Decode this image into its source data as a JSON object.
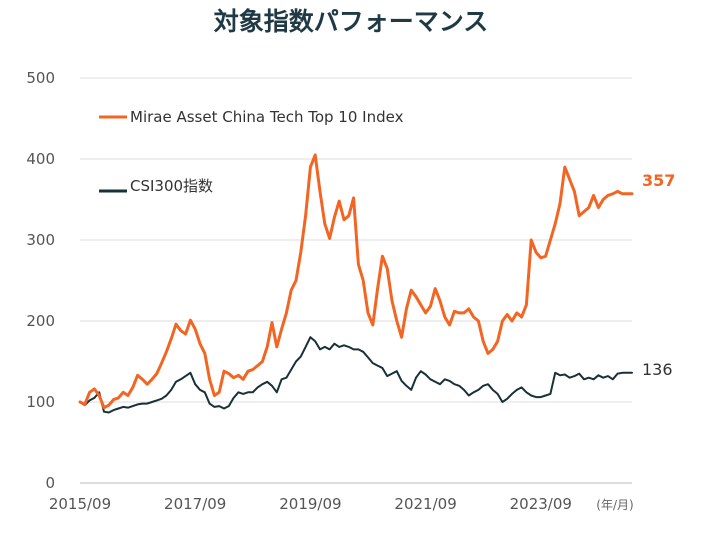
{
  "chart_data": {
    "type": "line",
    "title": "対象指数パフォーマンス",
    "xlabel": "",
    "ylabel": "",
    "x_unit_label": "(年/月)",
    "ylim": [
      0,
      500
    ],
    "yticks": [
      0,
      100,
      200,
      300,
      400,
      500
    ],
    "x_tick_labels": [
      "2015/09",
      "2017/09",
      "2019/09",
      "2021/09",
      "2023/09"
    ],
    "x_range_months": [
      0,
      115
    ],
    "x_tick_months": [
      0,
      24,
      48,
      72,
      96
    ],
    "grid": true,
    "legend_position": "top-left",
    "series": [
      {
        "name": "Mirae Asset China Tech Top 10 Index",
        "color": "#f26522",
        "end_label": "357",
        "months": [
          0,
          1,
          2,
          3,
          4,
          5,
          6,
          7,
          8,
          9,
          10,
          11,
          12,
          13,
          14,
          15,
          16,
          17,
          18,
          19,
          20,
          21,
          22,
          23,
          24,
          25,
          26,
          27,
          28,
          29,
          30,
          31,
          32,
          33,
          34,
          35,
          36,
          37,
          38,
          39,
          40,
          41,
          42,
          43,
          44,
          45,
          46,
          47,
          48,
          49,
          50,
          51,
          52,
          53,
          54,
          55,
          56,
          57,
          58,
          59,
          60,
          61,
          62,
          63,
          64,
          65,
          66,
          67,
          68,
          69,
          70,
          71,
          72,
          73,
          74,
          75,
          76,
          77,
          78,
          79,
          80,
          81,
          82,
          83,
          84,
          85,
          86,
          87,
          88,
          89,
          90,
          91,
          92,
          93,
          94,
          95,
          96,
          97,
          98,
          99,
          100,
          101,
          102,
          103,
          104,
          105,
          106,
          107,
          108,
          109,
          110,
          111,
          112,
          113,
          114,
          115
        ],
        "values": [
          100,
          97,
          112,
          116,
          108,
          93,
          96,
          103,
          105,
          112,
          108,
          118,
          133,
          128,
          122,
          128,
          135,
          148,
          162,
          178,
          196,
          188,
          184,
          201,
          190,
          172,
          160,
          128,
          108,
          112,
          138,
          135,
          130,
          133,
          128,
          138,
          140,
          145,
          150,
          168,
          198,
          168,
          190,
          210,
          238,
          250,
          285,
          330,
          390,
          405,
          360,
          320,
          302,
          328,
          348,
          325,
          330,
          352,
          270,
          250,
          210,
          195,
          240,
          280,
          265,
          225,
          200,
          180,
          215,
          238,
          230,
          220,
          210,
          218,
          240,
          225,
          205,
          195,
          212,
          210,
          210,
          215,
          205,
          200,
          175,
          160,
          165,
          175,
          200,
          208,
          200,
          210,
          205,
          220,
          300,
          285,
          278,
          280,
          300,
          320,
          345,
          390,
          375,
          360,
          330,
          335,
          340,
          355,
          340,
          350,
          355,
          357,
          360,
          357,
          357,
          357
        ]
      },
      {
        "name": "CSI300指数",
        "color": "#17303a",
        "end_label": "136",
        "months": [
          0,
          1,
          2,
          3,
          4,
          5,
          6,
          7,
          8,
          9,
          10,
          11,
          12,
          13,
          14,
          15,
          16,
          17,
          18,
          19,
          20,
          21,
          22,
          23,
          24,
          25,
          26,
          27,
          28,
          29,
          30,
          31,
          32,
          33,
          34,
          35,
          36,
          37,
          38,
          39,
          40,
          41,
          42,
          43,
          44,
          45,
          46,
          47,
          48,
          49,
          50,
          51,
          52,
          53,
          54,
          55,
          56,
          57,
          58,
          59,
          60,
          61,
          62,
          63,
          64,
          65,
          66,
          67,
          68,
          69,
          70,
          71,
          72,
          73,
          74,
          75,
          76,
          77,
          78,
          79,
          80,
          81,
          82,
          83,
          84,
          85,
          86,
          87,
          88,
          89,
          90,
          91,
          92,
          93,
          94,
          95,
          96,
          97,
          98,
          99,
          100,
          101,
          102,
          103,
          104,
          105,
          106,
          107,
          108,
          109,
          110,
          111,
          112,
          113,
          114,
          115
        ],
        "values": [
          100,
          96,
          102,
          105,
          112,
          88,
          87,
          90,
          92,
          94,
          93,
          95,
          97,
          98,
          98,
          100,
          102,
          104,
          108,
          115,
          125,
          128,
          132,
          136,
          122,
          115,
          112,
          98,
          94,
          95,
          92,
          95,
          105,
          112,
          110,
          112,
          112,
          118,
          122,
          125,
          120,
          112,
          128,
          130,
          140,
          150,
          156,
          168,
          180,
          175,
          165,
          168,
          165,
          172,
          168,
          170,
          168,
          165,
          165,
          162,
          155,
          148,
          145,
          142,
          132,
          135,
          138,
          126,
          120,
          115,
          130,
          138,
          134,
          128,
          125,
          122,
          128,
          126,
          122,
          120,
          115,
          108,
          112,
          115,
          120,
          122,
          115,
          110,
          100,
          104,
          110,
          115,
          118,
          112,
          108,
          106,
          106,
          108,
          110,
          136,
          133,
          134,
          130,
          132,
          135,
          128,
          130,
          128,
          133,
          130,
          132,
          128,
          135,
          136,
          136,
          136
        ]
      }
    ]
  }
}
